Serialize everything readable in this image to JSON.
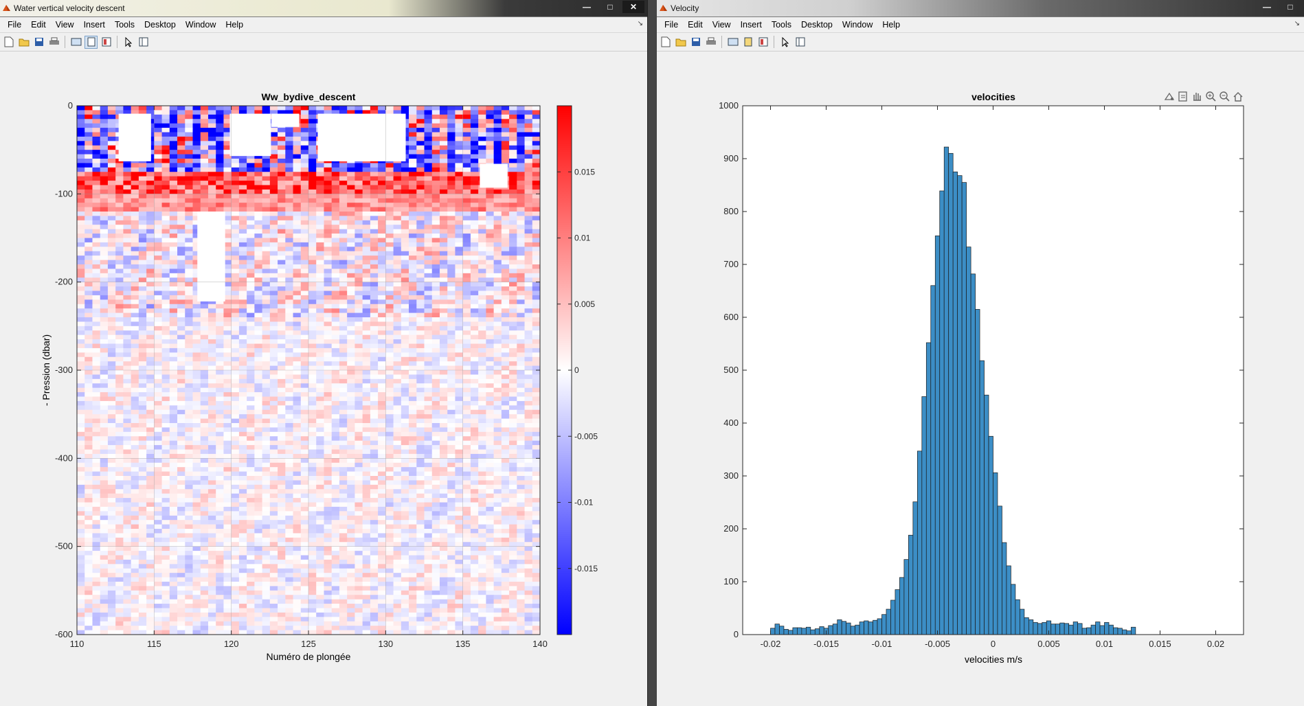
{
  "left_window": {
    "title": "Water vertical velocity descent",
    "menu": [
      "File",
      "Edit",
      "View",
      "Insert",
      "Tools",
      "Desktop",
      "Window",
      "Help"
    ],
    "plot": {
      "title": "Ww_bydive_descent",
      "xlabel": "Numéro de plongée",
      "ylabel": "- Pression (dbar)",
      "xticks": [
        "110",
        "115",
        "120",
        "125",
        "130",
        "135",
        "140"
      ],
      "yticks": [
        "0",
        "-100",
        "-200",
        "-300",
        "-400",
        "-500",
        "-600"
      ],
      "colorbar_ticks": [
        "0.015",
        "0.01",
        "0.005",
        "0",
        "-0.005",
        "-0.01",
        "-0.015"
      ]
    }
  },
  "right_window": {
    "title": "Velocity",
    "menu": [
      "File",
      "Edit",
      "View",
      "Insert",
      "Tools",
      "Desktop",
      "Window",
      "Help"
    ]
  },
  "colors": {
    "bar_fill": "#3c8ec6",
    "positive": "#ff1a1a",
    "negative": "#1a1aff"
  },
  "chart_data": [
    {
      "type": "heatmap",
      "title": "Ww_bydive_descent",
      "xlabel": "Numéro de plongée",
      "ylabel": "- Pression (dbar)",
      "xlim": [
        110,
        140
      ],
      "ylim": [
        -600,
        0
      ],
      "clim": [
        -0.02,
        0.02
      ],
      "colormap": "blue-white-red",
      "grid": true
    },
    {
      "type": "bar",
      "title": "velocities",
      "xlabel": "velocities m/s",
      "ylabel": "",
      "xlim": [
        -0.0225,
        0.0225
      ],
      "ylim": [
        0,
        1000
      ],
      "xticks": [
        "-0.02",
        "-0.015",
        "-0.01",
        "-0.005",
        "0",
        "0.005",
        "0.01",
        "0.015",
        "0.02"
      ],
      "yticks": [
        "0",
        "100",
        "200",
        "300",
        "400",
        "500",
        "600",
        "700",
        "800",
        "900",
        "1000"
      ],
      "bin_start": -0.02,
      "bin_width": 0.0004,
      "values": [
        12,
        20,
        16,
        10,
        8,
        13,
        13,
        12,
        14,
        9,
        11,
        15,
        12,
        17,
        20,
        28,
        25,
        22,
        16,
        18,
        24,
        26,
        24,
        27,
        30,
        38,
        48,
        65,
        85,
        108,
        142,
        188,
        251,
        347,
        450,
        552,
        660,
        754,
        839,
        922,
        910,
        875,
        868,
        855,
        733,
        682,
        615,
        518,
        453,
        375,
        306,
        243,
        174,
        130,
        95,
        66,
        48,
        32,
        28,
        23,
        21,
        23,
        26,
        20,
        20,
        22,
        21,
        18,
        24,
        21,
        12,
        13,
        18,
        24,
        17,
        23,
        18,
        13,
        12,
        9,
        7,
        14
      ]
    }
  ]
}
